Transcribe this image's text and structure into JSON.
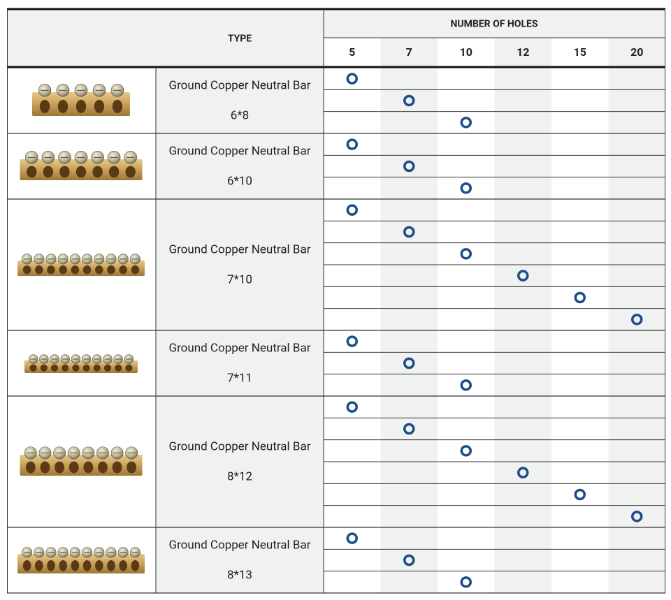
{
  "header": {
    "type": "TYPE",
    "holes_title": "NUMBER OF HOLES",
    "columns": [
      5,
      7,
      10,
      12,
      15,
      20
    ]
  },
  "groups": [
    {
      "name": "Ground Copper Neutral Bar",
      "size": "6*8",
      "holes": [
        5,
        7,
        10
      ]
    },
    {
      "name": "Ground Copper Neutral Bar",
      "size": "6*10",
      "holes": [
        5,
        7,
        10
      ]
    },
    {
      "name": "Ground Copper Neutral Bar",
      "size": "7*10",
      "holes": [
        5,
        7,
        10,
        12,
        15,
        20
      ]
    },
    {
      "name": "Ground Copper Neutral Bar",
      "size": "7*11",
      "holes": [
        5,
        7,
        10
      ]
    },
    {
      "name": "Ground Copper Neutral Bar",
      "size": "8*12",
      "holes": [
        5,
        7,
        10,
        12,
        15,
        20
      ]
    },
    {
      "name": "Ground Copper Neutral Bar",
      "size": "8*13",
      "holes": [
        5,
        7,
        10
      ]
    }
  ]
}
